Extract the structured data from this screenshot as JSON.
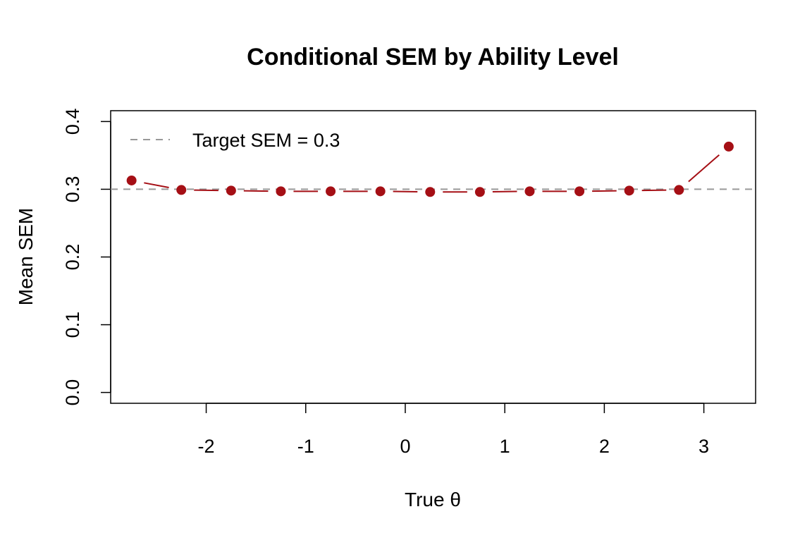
{
  "chart_data": {
    "type": "line",
    "title": "Conditional SEM by Ability Level",
    "xlabel": "True θ",
    "ylabel": "Mean SEM",
    "xlim": [
      -2.96,
      3.52
    ],
    "ylim": [
      -0.016,
      0.416
    ],
    "x_ticks": [
      -2,
      -1,
      0,
      1,
      2,
      3
    ],
    "x_tick_labels": [
      "-2",
      "-1",
      "0",
      "1",
      "2",
      "3"
    ],
    "y_ticks": [
      0.0,
      0.1,
      0.2,
      0.3,
      0.4
    ],
    "y_tick_labels": [
      "0.0",
      "0.1",
      "0.2",
      "0.3",
      "0.4"
    ],
    "series": [
      {
        "x": [
          -2.75,
          -2.25,
          -1.75,
          -1.25,
          -0.75,
          -0.25,
          0.25,
          0.75,
          1.25,
          1.75,
          2.25,
          2.75,
          3.25
        ],
        "values": [
          0.313,
          0.299,
          0.298,
          0.297,
          0.297,
          0.297,
          0.296,
          0.296,
          0.297,
          0.297,
          0.298,
          0.299,
          0.363
        ],
        "color": "#A50F15",
        "style": "points-and-lines"
      }
    ],
    "reference_line": {
      "y": 0.3,
      "color": "#999999",
      "style": "dashed"
    },
    "legend": {
      "placement": "top-left",
      "entries": [
        {
          "label": "Target SEM = 0.3",
          "color": "#999999",
          "style": "dashed"
        }
      ]
    },
    "grid": false
  }
}
